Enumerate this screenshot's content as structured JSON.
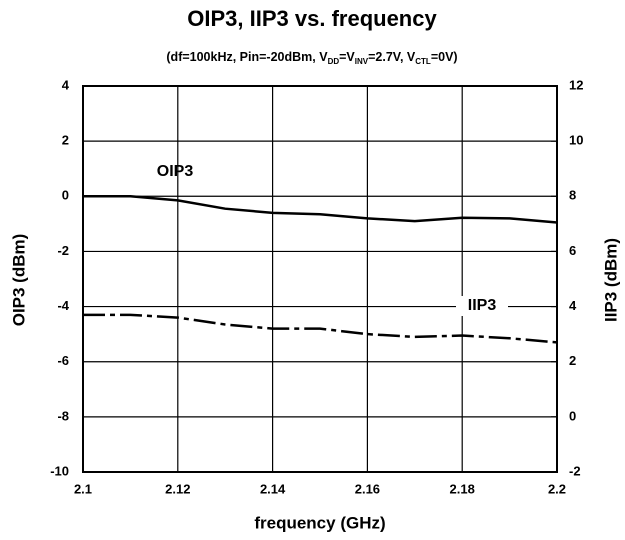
{
  "chart_data": {
    "type": "line",
    "title": "OIP3, IIP3 vs. frequency",
    "subtitle": [
      "(df=100kHz, Pin=-20dBm, V",
      "DD",
      "=V",
      "INV",
      "=2.7V, V",
      "CTL",
      "=0V)"
    ],
    "xlabel": "frequency (GHz)",
    "ylabel": "OIP3 (dBm)",
    "y2label": "IIP3 (dBm)",
    "x": [
      2.1,
      2.11,
      2.12,
      2.13,
      2.14,
      2.15,
      2.16,
      2.17,
      2.18,
      2.19,
      2.2
    ],
    "series": [
      {
        "name": "OIP3",
        "color": "#000000",
        "dash": "solid",
        "values": [
          0,
          0,
          -0.15,
          -0.45,
          -0.6,
          -0.65,
          -0.8,
          -0.9,
          -0.78,
          -0.8,
          -0.95
        ]
      },
      {
        "name": "IIP3",
        "color": "#000000",
        "dash": "dashed",
        "axis": "y2",
        "values": [
          3.7,
          3.7,
          3.6,
          3.35,
          3.2,
          3.2,
          3.0,
          2.9,
          2.95,
          2.85,
          2.7
        ]
      }
    ],
    "xlim": [
      2.1,
      2.2
    ],
    "xticks": [
      2.1,
      2.12,
      2.14,
      2.16,
      2.18,
      2.2
    ],
    "ylim": [
      -10,
      4
    ],
    "yticks": [
      -10,
      -8,
      -6,
      -4,
      -2,
      0,
      2,
      4
    ],
    "y2lim": [
      -2,
      12
    ],
    "y2ticks": [
      -2,
      0,
      2,
      4,
      6,
      8,
      10,
      12
    ],
    "grid": true
  }
}
